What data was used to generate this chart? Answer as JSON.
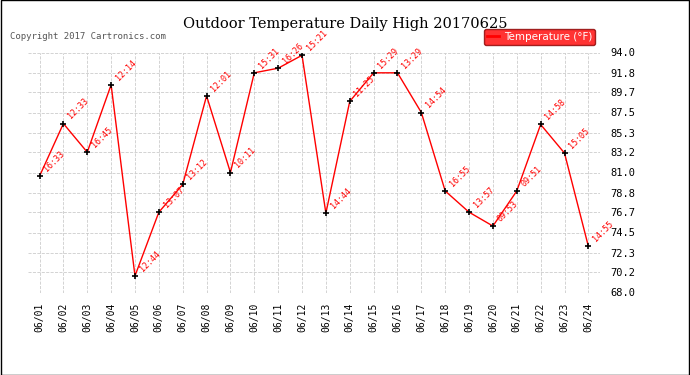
{
  "title": "Outdoor Temperature Daily High 20170625",
  "copyright": "Copyright 2017 Cartronics.com",
  "legend_label": "Temperature (°F)",
  "dates": [
    "06/01",
    "06/02",
    "06/03",
    "06/04",
    "06/05",
    "06/06",
    "06/07",
    "06/08",
    "06/09",
    "06/10",
    "06/11",
    "06/12",
    "06/13",
    "06/14",
    "06/15",
    "06/16",
    "06/17",
    "06/18",
    "06/19",
    "06/20",
    "06/21",
    "06/22",
    "06/23",
    "06/24"
  ],
  "temperatures": [
    80.6,
    86.3,
    83.2,
    90.5,
    69.8,
    76.7,
    79.7,
    89.3,
    81.0,
    91.8,
    92.3,
    93.7,
    76.6,
    88.7,
    91.8,
    91.8,
    87.5,
    79.0,
    76.7,
    75.2,
    79.0,
    86.2,
    83.1,
    73.0
  ],
  "time_labels": [
    "16:33",
    "12:33",
    "16:45",
    "12:14",
    "12:44",
    "13:07",
    "13:12",
    "12:01",
    "10:11",
    "15:31",
    "16:26",
    "15:21",
    "14:44",
    "11:25",
    "15:29",
    "13:29",
    "14:54",
    "16:55",
    "13:57",
    "09:53",
    "09:51",
    "14:58",
    "15:05",
    "14:55"
  ],
  "line_color": "#ff0000",
  "marker_color": "#000000",
  "bg_color": "#ffffff",
  "grid_color": "#cccccc",
  "ylim_min": 68.0,
  "ylim_max": 94.0,
  "yticks": [
    68.0,
    70.2,
    72.3,
    74.5,
    76.7,
    78.8,
    81.0,
    83.2,
    85.3,
    87.5,
    89.7,
    91.8,
    94.0
  ]
}
